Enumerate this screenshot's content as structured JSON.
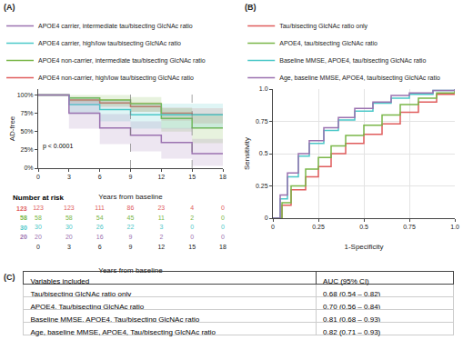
{
  "chart_data": [
    {
      "type": "line",
      "title": "(A)",
      "xlabel": "Years from baseline",
      "ylabel": "AD-free",
      "xlim": [
        0,
        18
      ],
      "ylim": [
        0,
        108
      ],
      "xticks": [
        0,
        3,
        6,
        9,
        12,
        15,
        18
      ],
      "yticks": [
        {
          "value": 0,
          "label": "0%"
        },
        {
          "value": 25,
          "label": "25%"
        },
        {
          "value": 50,
          "label": "50%"
        },
        {
          "value": 75,
          "label": "75%"
        },
        {
          "value": 100,
          "label": "100%"
        }
      ],
      "grid": false,
      "legend": "above",
      "vlines": [
        9,
        15
      ],
      "annotations": [
        {
          "text": "p < 0.0001",
          "x": 0.3,
          "y": 22
        }
      ],
      "series": [
        {
          "name": "APOE4 non-carrier, high/low tau/bisecting GlcNAc ratio",
          "color": "#e05c5c",
          "x": [
            0,
            3,
            3,
            6,
            6,
            9,
            9,
            12,
            12,
            15,
            15,
            18
          ],
          "values": [
            100,
            100,
            93,
            93,
            89,
            89,
            84,
            84,
            75,
            75,
            73,
            73
          ],
          "ci_upper": [
            100,
            100,
            97,
            97,
            94,
            94,
            90,
            90,
            83,
            83,
            82,
            82
          ],
          "ci_lower": [
            100,
            100,
            88,
            88,
            83,
            83,
            77,
            77,
            65,
            65,
            61,
            61
          ]
        },
        {
          "name": "APOE4 non-carrier, intermediate tau/bisecting GlcNAc ratio",
          "color": "#7ab648",
          "x": [
            0,
            3,
            3,
            6,
            6,
            9,
            9,
            12,
            12,
            15,
            15,
            18
          ],
          "values": [
            100,
            100,
            96,
            96,
            93,
            93,
            88,
            88,
            68,
            68,
            55,
            55
          ],
          "ci_upper": [
            100,
            100,
            100,
            100,
            100,
            100,
            97,
            97,
            82,
            82,
            72,
            72
          ],
          "ci_lower": [
            100,
            100,
            90,
            90,
            85,
            85,
            77,
            77,
            50,
            50,
            34,
            34
          ]
        },
        {
          "name": "APOE4 carrier, high/low tau/bisecting GlcNAc ratio",
          "color": "#4bc8c8",
          "x": [
            0,
            3,
            3,
            6,
            6,
            9,
            9,
            12,
            12,
            15,
            15,
            18
          ],
          "values": [
            100,
            100,
            87,
            87,
            80,
            80,
            73,
            73,
            73,
            73,
            73,
            73
          ],
          "ci_upper": [
            100,
            100,
            97,
            97,
            93,
            93,
            88,
            88,
            88,
            88,
            88,
            88
          ],
          "ci_lower": [
            100,
            100,
            74,
            74,
            64,
            64,
            54,
            54,
            54,
            54,
            54,
            54
          ]
        },
        {
          "name": "APOE4 carrier, intermediate tau/bisecting GlcNAc ratio",
          "color": "#9b72b0",
          "x": [
            0,
            3,
            3,
            6,
            6,
            9,
            9,
            12,
            12,
            15,
            15,
            18
          ],
          "values": [
            100,
            100,
            75,
            75,
            55,
            55,
            45,
            45,
            35,
            35,
            20,
            20
          ],
          "ci_upper": [
            100,
            100,
            92,
            92,
            74,
            74,
            64,
            64,
            55,
            55,
            40,
            40
          ],
          "ci_lower": [
            100,
            100,
            54,
            54,
            33,
            33,
            23,
            23,
            13,
            13,
            3,
            3
          ]
        }
      ]
    },
    {
      "type": "risk_table",
      "title": "Number at risk",
      "xlabel": "Years from baseline",
      "xlim": [
        0,
        18
      ],
      "xticks": [
        0,
        3,
        6,
        9,
        12,
        15,
        18
      ],
      "x": [
        0,
        3,
        6,
        9,
        12,
        15,
        18
      ],
      "series": [
        {
          "name": "123",
          "color": "#e05c5c",
          "values": [
            123,
            123,
            111,
            86,
            23,
            4,
            0
          ]
        },
        {
          "name": "58",
          "color": "#7ab648",
          "values": [
            58,
            58,
            54,
            45,
            11,
            2,
            0
          ]
        },
        {
          "name": "30",
          "color": "#4bc8c8",
          "values": [
            30,
            30,
            26,
            22,
            3,
            0,
            0
          ]
        },
        {
          "name": "20",
          "color": "#9b72b0",
          "values": [
            20,
            20,
            16,
            9,
            2,
            0,
            0
          ]
        }
      ]
    },
    {
      "type": "step",
      "title": "(B)",
      "xlabel": "1-Specificity",
      "ylabel": "Sensitivity",
      "xlim": [
        0,
        1
      ],
      "ylim": [
        0,
        1
      ],
      "xticks": [
        0,
        0.25,
        0.5,
        0.75,
        {
          "value": 1,
          "label": "1.0"
        }
      ],
      "yticks": [
        0,
        0.25,
        0.5,
        0.75,
        {
          "value": 1,
          "label": "1.0"
        }
      ],
      "grid": true,
      "legend": "above",
      "series": [
        {
          "name": "Tau/bisecting GlcNAc ratio only",
          "color": "#e05c5c",
          "x": [
            0,
            0.05,
            0.1,
            0.18,
            0.25,
            0.32,
            0.4,
            0.5,
            0.6,
            0.7,
            0.8,
            0.9,
            1.0
          ],
          "values": [
            0,
            0.1,
            0.22,
            0.32,
            0.4,
            0.5,
            0.58,
            0.65,
            0.73,
            0.82,
            0.9,
            0.96,
            1.0
          ]
        },
        {
          "name": "APOE4, tau/bisecting GlcNAc ratio",
          "color": "#7ab648",
          "x": [
            0,
            0.05,
            0.1,
            0.18,
            0.25,
            0.32,
            0.4,
            0.5,
            0.6,
            0.7,
            0.8,
            0.9,
            1.0
          ],
          "values": [
            0,
            0.12,
            0.25,
            0.38,
            0.47,
            0.56,
            0.64,
            0.72,
            0.8,
            0.88,
            0.93,
            0.97,
            1.0
          ]
        },
        {
          "name": "Baseline MMSE, APOE4, tau/bisecting GlcNAc ratio",
          "color": "#4bc8c8",
          "x": [
            0,
            0.04,
            0.08,
            0.14,
            0.2,
            0.28,
            0.36,
            0.45,
            0.55,
            0.65,
            0.75,
            0.88,
            1.0
          ],
          "values": [
            0,
            0.15,
            0.32,
            0.48,
            0.58,
            0.68,
            0.76,
            0.83,
            0.89,
            0.93,
            0.96,
            0.99,
            1.0
          ]
        },
        {
          "name": "Age, baseline MMSE, APOE4, tau/bisecting GlcNAc ratio",
          "color": "#9b72b0",
          "x": [
            0,
            0.04,
            0.08,
            0.14,
            0.2,
            0.28,
            0.36,
            0.45,
            0.55,
            0.65,
            0.75,
            0.88,
            1.0
          ],
          "values": [
            0,
            0.18,
            0.35,
            0.5,
            0.6,
            0.7,
            0.78,
            0.85,
            0.9,
            0.95,
            0.97,
            0.99,
            1.0
          ]
        }
      ]
    },
    {
      "type": "table",
      "title": "(C)",
      "headers": [
        "Variables included",
        "AUC (95% CI)"
      ],
      "rows": [
        [
          "Tau/bisecting GlcNAc ratio only",
          "0.68 (0.54 – 0.82)"
        ],
        [
          "APOE4, Tau/bisecting GlcNAc ratio",
          "0.70 (0.56 – 0.84)"
        ],
        [
          "Baseline MMSE, APOE4, Tau/bisecting GlcNAc ratio",
          "0.81 (0.68 – 0.93)"
        ],
        [
          "Age, baseline MMSE, APOE4, Tau/bisecting GlcNAc ratio",
          "0.82 (0.71 – 0.93)"
        ]
      ]
    }
  ]
}
